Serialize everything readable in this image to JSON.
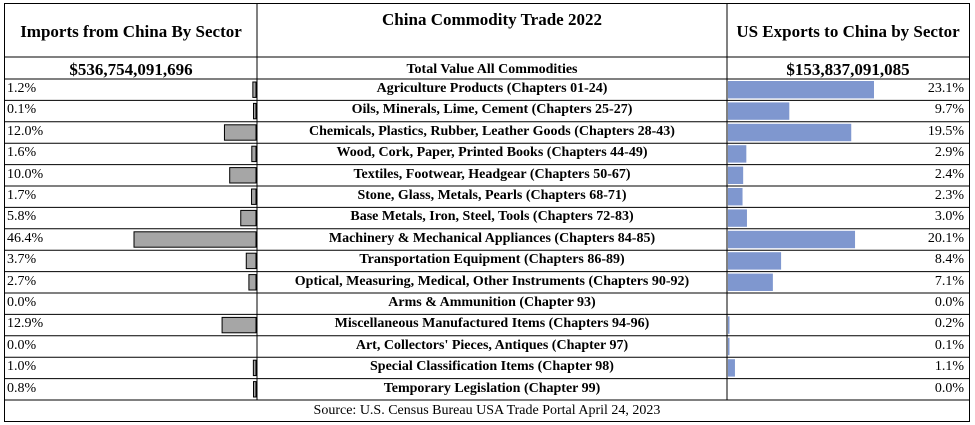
{
  "header": {
    "left_title": "Imports from China By Sector",
    "center_title": "China Commodity Trade 2022",
    "right_title": "US Exports to China by Sector"
  },
  "totals": {
    "imports": "$536,754,091,696",
    "label": "Total Value All Commodities",
    "exports": "$153,837,091,085"
  },
  "footer": {
    "source": "Source: U.S. Census Bureau USA Trade Portal April 24, 2023"
  },
  "colors": {
    "import_bar": "#a6a6a6",
    "export_bar": "#7f97cf",
    "grid": "#000000"
  },
  "chart_data": {
    "type": "bar",
    "title": "China Commodity Trade 2022",
    "categories": [
      "Agriculture Products (Chapters 01-24)",
      "Oils, Minerals, Lime, Cement  (Chapters 25-27)",
      "Chemicals, Plastics, Rubber, Leather Goods (Chapters 28-43)",
      "Wood, Cork, Paper, Printed Books (Chapters 44-49)",
      "Textiles, Footwear,  Headgear (Chapters 50-67)",
      "Stone, Glass, Metals, Pearls (Chapters 68-71)",
      "Base Metals, Iron, Steel, Tools (Chapters 72-83)",
      "Machinery & Mechanical Appliances (Chapters 84-85)",
      "Transportation Equipment (Chapters 86-89)",
      "Optical, Measuring, Medical, Other Instruments (Chapters 90-92)",
      "Arms & Ammunition (Chapter 93)",
      "Miscellaneous Manufactured Items (Chapters 94-96)",
      "Art, Collectors' Pieces, Antiques (Chapter 97)",
      "Special Classification Items (Chapter 98)",
      "Temporary Legislation (Chapter 99)"
    ],
    "series": [
      {
        "name": "Imports from China By Sector",
        "values": [
          1.2,
          0.1,
          12.0,
          1.6,
          10.0,
          1.7,
          5.8,
          46.4,
          3.7,
          2.7,
          0.0,
          12.9,
          0.0,
          1.0,
          0.8
        ],
        "labels": [
          "1.2%",
          "0.1%",
          "12.0%",
          "1.6%",
          "10.0%",
          "1.7%",
          "5.8%",
          "46.4%",
          "3.7%",
          "2.7%",
          "0.0%",
          "12.9%",
          "0.0%",
          "1.0%",
          "0.8%"
        ]
      },
      {
        "name": "US Exports to China by Sector",
        "values": [
          23.1,
          9.7,
          19.5,
          2.9,
          2.4,
          2.3,
          3.0,
          20.1,
          8.4,
          7.1,
          0.0,
          0.2,
          0.1,
          1.1,
          0.0
        ],
        "labels": [
          "23.1%",
          "9.7%",
          "19.5%",
          "2.9%",
          "2.4%",
          "2.3%",
          "3.0%",
          "20.1%",
          "8.4%",
          "7.1%",
          "0.0%",
          "0.2%",
          "0.1%",
          "1.1%",
          "0.0%"
        ]
      }
    ],
    "unit": "%"
  }
}
